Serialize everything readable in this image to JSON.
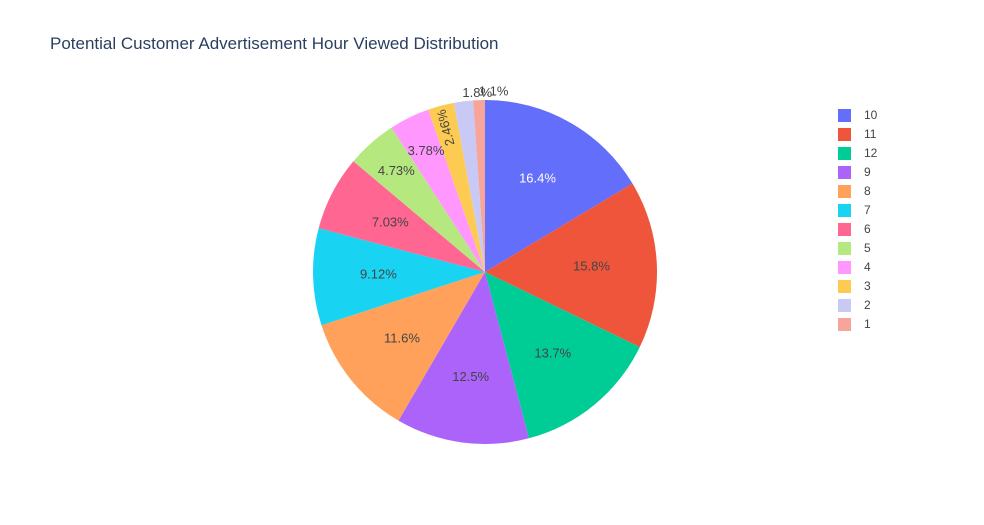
{
  "chart_data": {
    "type": "pie",
    "title": "Potential Customer Advertisement Hour Viewed Distribution",
    "slices": [
      {
        "label": "10",
        "percent": 16.4,
        "text": "16.4%",
        "color": "#636efa",
        "text_color": "#ffffff"
      },
      {
        "label": "11",
        "percent": 15.8,
        "text": "15.8%",
        "color": "#ef553b",
        "text_color": "#444444"
      },
      {
        "label": "12",
        "percent": 13.7,
        "text": "13.7%",
        "color": "#00cc96",
        "text_color": "#444444"
      },
      {
        "label": "9",
        "percent": 12.5,
        "text": "12.5%",
        "color": "#ab63fa",
        "text_color": "#444444"
      },
      {
        "label": "8",
        "percent": 11.6,
        "text": "11.6%",
        "color": "#ffa15a",
        "text_color": "#444444"
      },
      {
        "label": "7",
        "percent": 9.12,
        "text": "9.12%",
        "color": "#19d3f3",
        "text_color": "#444444"
      },
      {
        "label": "6",
        "percent": 7.03,
        "text": "7.03%",
        "color": "#ff6692",
        "text_color": "#444444"
      },
      {
        "label": "5",
        "percent": 4.73,
        "text": "4.73%",
        "color": "#b6e880",
        "text_color": "#444444"
      },
      {
        "label": "4",
        "percent": 3.78,
        "text": "3.78%",
        "color": "#ff97ff",
        "text_color": "#444444"
      },
      {
        "label": "3",
        "percent": 2.46,
        "text": "2.46%",
        "color": "#fecb52",
        "text_color": "#444444"
      },
      {
        "label": "2",
        "percent": 1.8,
        "text": "1.8%",
        "color": "#c9c9f5",
        "text_color": "#444444"
      },
      {
        "label": "1",
        "percent": 1.1,
        "text": "1.1%",
        "color": "#f7a59a",
        "text_color": "#444444"
      }
    ],
    "direction": "clockwise",
    "start": "top",
    "legend_position": "right"
  }
}
